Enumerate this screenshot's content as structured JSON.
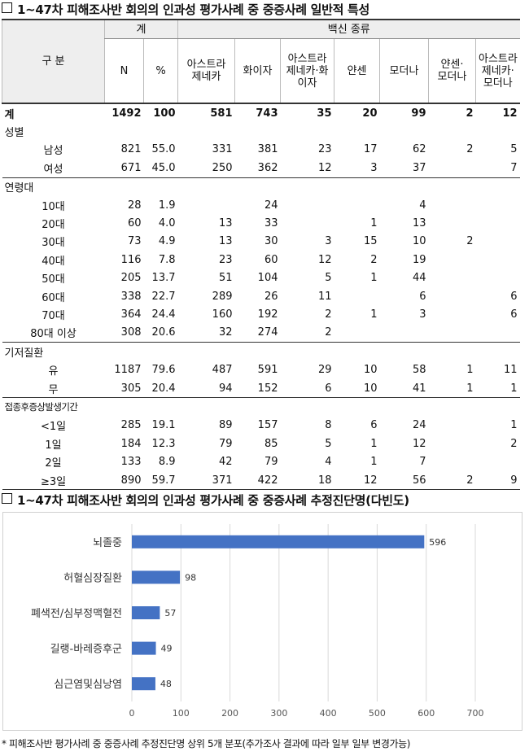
{
  "section1_title": "1~47차 피해조사반 회의의 인과성 평가사례 중 중증사례 일반적 특성",
  "header": {
    "gubun": "구 분",
    "total_group": "계",
    "vaccine_group": "백신 종류",
    "n": "N",
    "pct": "%",
    "vaccines": [
      "아스트라\n제네카",
      "화이자",
      "아스트라\n제네카·화\n이자",
      "얀센",
      "모더나",
      "얀센·\n모더나",
      "아스트라\n제네카·\n모더나"
    ]
  },
  "rows": [
    {
      "type": "total",
      "label": "계",
      "n": "1492",
      "pct": "100",
      "v": [
        "581",
        "743",
        "35",
        "20",
        "99",
        "2",
        "12"
      ]
    },
    {
      "type": "group",
      "label": "성별"
    },
    {
      "type": "sub",
      "label": "남성",
      "n": "821",
      "pct": "55.0",
      "v": [
        "331",
        "381",
        "23",
        "17",
        "62",
        "2",
        "5"
      ]
    },
    {
      "type": "sub",
      "label": "여성",
      "n": "671",
      "pct": "45.0",
      "v": [
        "250",
        "362",
        "12",
        "3",
        "37",
        "",
        "7"
      ]
    },
    {
      "type": "group",
      "label": "연령대",
      "sep": true
    },
    {
      "type": "sub",
      "label": "10대",
      "n": "28",
      "pct": "1.9",
      "v": [
        "",
        "24",
        "",
        "",
        "4",
        "",
        ""
      ]
    },
    {
      "type": "sub",
      "label": "20대",
      "n": "60",
      "pct": "4.0",
      "v": [
        "13",
        "33",
        "",
        "1",
        "13",
        "",
        ""
      ]
    },
    {
      "type": "sub",
      "label": "30대",
      "n": "73",
      "pct": "4.9",
      "v": [
        "13",
        "30",
        "3",
        "15",
        "10",
        "2",
        ""
      ]
    },
    {
      "type": "sub",
      "label": "40대",
      "n": "116",
      "pct": "7.8",
      "v": [
        "23",
        "60",
        "12",
        "2",
        "19",
        "",
        ""
      ]
    },
    {
      "type": "sub",
      "label": "50대",
      "n": "205",
      "pct": "13.7",
      "v": [
        "51",
        "104",
        "5",
        "1",
        "44",
        "",
        ""
      ]
    },
    {
      "type": "sub",
      "label": "60대",
      "n": "338",
      "pct": "22.7",
      "v": [
        "289",
        "26",
        "11",
        "",
        "6",
        "",
        "6"
      ]
    },
    {
      "type": "sub",
      "label": "70대",
      "n": "364",
      "pct": "24.4",
      "v": [
        "160",
        "192",
        "2",
        "1",
        "3",
        "",
        "6"
      ]
    },
    {
      "type": "sub",
      "label": "80대 이상",
      "n": "308",
      "pct": "20.6",
      "v": [
        "32",
        "274",
        "2",
        "",
        "",
        "",
        ""
      ]
    },
    {
      "type": "group",
      "label": "기저질환",
      "sep": true
    },
    {
      "type": "sub",
      "label": "유",
      "n": "1187",
      "pct": "79.6",
      "v": [
        "487",
        "591",
        "29",
        "10",
        "58",
        "1",
        "11"
      ]
    },
    {
      "type": "sub",
      "label": "무",
      "n": "305",
      "pct": "20.4",
      "v": [
        "94",
        "152",
        "6",
        "10",
        "41",
        "1",
        "1"
      ]
    },
    {
      "type": "group",
      "label": "접종후증상발생기간",
      "sep": true,
      "small": true
    },
    {
      "type": "sub",
      "label": "<1일",
      "n": "285",
      "pct": "19.1",
      "v": [
        "89",
        "157",
        "8",
        "6",
        "24",
        "",
        "1"
      ]
    },
    {
      "type": "sub",
      "label": "1일",
      "n": "184",
      "pct": "12.3",
      "v": [
        "79",
        "85",
        "5",
        "1",
        "12",
        "",
        "2"
      ]
    },
    {
      "type": "sub",
      "label": "2일",
      "n": "133",
      "pct": "8.9",
      "v": [
        "42",
        "79",
        "4",
        "1",
        "7",
        "",
        ""
      ]
    },
    {
      "type": "sub",
      "label": "≥3일",
      "n": "890",
      "pct": "59.7",
      "v": [
        "371",
        "422",
        "18",
        "12",
        "56",
        "2",
        "9"
      ],
      "last": true
    }
  ],
  "section2_title": "1~47차 피해조사반 회의의 인과성 평가사례 중 중증사례 추정진단명(다빈도)",
  "chart_data": {
    "type": "bar",
    "orientation": "horizontal",
    "categories": [
      "뇌졸중",
      "허혈심장질환",
      "폐색전/심부정맥혈전",
      "길랭-바레증후군",
      "심근염및심낭염"
    ],
    "values": [
      596,
      98,
      57,
      49,
      48
    ],
    "xlim": [
      0,
      700
    ],
    "xticks": [
      0,
      100,
      200,
      300,
      400,
      500,
      600,
      700
    ],
    "grid": true,
    "bar_color": "#4472c4"
  },
  "note": "* 피해조사반 평가사례 중 중증사례 추정진단명 상위 5개 분포(추가조사 결과에 따라 일부 일부 변경가능)"
}
